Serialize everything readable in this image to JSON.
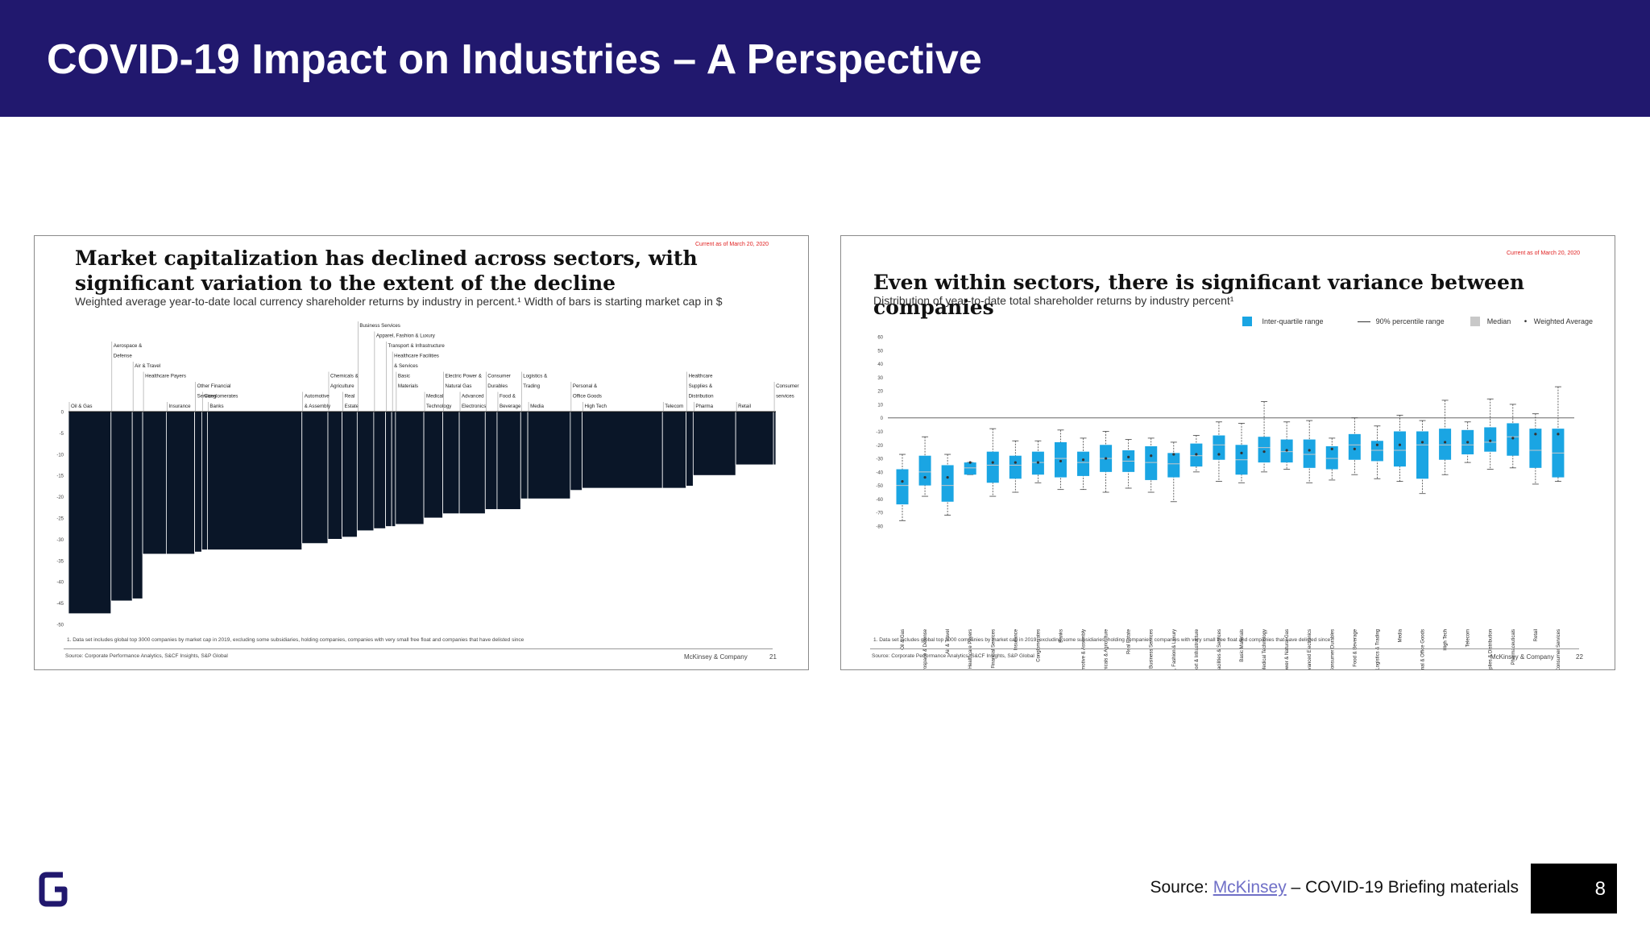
{
  "header": {
    "title": "COVID-19 Impact on Industries – A Perspective"
  },
  "left_panel": {
    "stamp": "Current as of March 20, 2020",
    "title": "Market capitalization has declined across sectors, with significant variation to the extent of the decline",
    "subtitle": "Weighted average year-to-date local currency shareholder returns by industry in percent.¹ Width of bars is starting market cap in $",
    "footnote": "1. Data set includes global top 3000 companies by market cap in 2019, excluding some subsidiaries, holding companies, companies with very small free float and companies that have delisted since",
    "source": "Source: Corporate Performance Analytics, S&CF Insights, S&P Global",
    "brand": "McKinsey & Company",
    "page": "21"
  },
  "right_panel": {
    "stamp": "Current as of March 20, 2020",
    "title": "Even within sectors, there is significant variance between companies",
    "subtitle": "Distribution of year-to-date total shareholder returns by industry percent¹",
    "legend": [
      "Inter-quartile range",
      "90% percentile range",
      "Median",
      "Weighted Average"
    ],
    "footnote": "1. Data set includes global top 3000 companies by market cap in 2019, excluding some subsidiaries, holding companies, companies with very small free float and companies that have delisted since",
    "source": "Source: Corporate Performance Analytics, S&CF Insights, S&P Global",
    "brand": "McKinsey & Company",
    "page": "22"
  },
  "chart_data": [
    {
      "type": "bar",
      "title": "Market capitalization has declined across sectors, with significant variation to the extent of the decline",
      "ylim": [
        -50,
        0
      ],
      "yticks": [
        0,
        -5,
        -10,
        -15,
        -20,
        -25,
        -30,
        -35,
        -40,
        -45,
        -50
      ],
      "bar_color": "#0a1628",
      "bars": [
        {
          "label": "Oil & Gas",
          "value": -47.5,
          "width": 9
        },
        {
          "label": "Aerospace & Defense",
          "value": -44.5,
          "width": 4.5
        },
        {
          "label": "Air & Travel",
          "value": -44,
          "width": 2.2
        },
        {
          "label": "Healthcare Payers",
          "value": -33.5,
          "width": 5
        },
        {
          "label": "Insurance",
          "value": -33.5,
          "width": 6
        },
        {
          "label": "Other Financial Services",
          "value": -33,
          "width": 1.5
        },
        {
          "label": "Conglomerates",
          "value": -32.5,
          "width": 1.2
        },
        {
          "label": "Banks",
          "value": -32.5,
          "width": 20
        },
        {
          "label": "Automotive & Assembly",
          "value": -31,
          "width": 5.5
        },
        {
          "label": "Chemicals & Agriculture",
          "value": -30,
          "width": 3
        },
        {
          "label": "Real Estate",
          "value": -29.5,
          "width": 3.2
        },
        {
          "label": "Business Services",
          "value": -28,
          "width": 3.5
        },
        {
          "label": "Apparel, Fashion & Luxury",
          "value": -27.5,
          "width": 2.5
        },
        {
          "label": "Transport & Infrastructure",
          "value": -27,
          "width": 1.3
        },
        {
          "label": "Healthcare Facilities & Services",
          "value": -27,
          "width": 0.8
        },
        {
          "label": "Basic Materials",
          "value": -26.5,
          "width": 6
        },
        {
          "label": "Medical Technology",
          "value": -25,
          "width": 4
        },
        {
          "label": "Electric Power & Natural Gas",
          "value": -24,
          "width": 3.5
        },
        {
          "label": "Advanced Electronics",
          "value": -24,
          "width": 5.5
        },
        {
          "label": "Consumer Durables",
          "value": -23,
          "width": 2.5
        },
        {
          "label": "Food & Beverage",
          "value": -23,
          "width": 5
        },
        {
          "label": "Logistics & Trading",
          "value": -20.5,
          "width": 1.5
        },
        {
          "label": "Media",
          "value": -20.5,
          "width": 9
        },
        {
          "label": "Personal & Office Goods",
          "value": -18.5,
          "width": 2.5
        },
        {
          "label": "High Tech",
          "value": -18,
          "width": 17
        },
        {
          "label": "Telecom",
          "value": -18,
          "width": 5
        },
        {
          "label": "Healthcare Supplies & Distribution",
          "value": -17.5,
          "width": 1.5
        },
        {
          "label": "Pharma",
          "value": -15,
          "width": 9
        },
        {
          "label": "Retail",
          "value": -12.5,
          "width": 8
        },
        {
          "label": "Consumer services",
          "value": -12.5,
          "width": 0.5
        }
      ],
      "bar_labels": [
        {
          "text": "Oil & Gas",
          "bar": 0,
          "row": 0
        },
        {
          "text": "Aerospace &",
          "bar": 1,
          "row": 6
        },
        {
          "text": "Defense",
          "bar": 1,
          "row": 5
        },
        {
          "text": "Air & Travel",
          "bar": 2,
          "row": 4
        },
        {
          "text": "Healthcare Payers",
          "bar": 3,
          "row": 3
        },
        {
          "text": "Other Financial",
          "bar": 5,
          "row": 2
        },
        {
          "text": "Services",
          "bar": 5,
          "row": 1
        },
        {
          "text": "Insurance",
          "bar": 4,
          "row": 0
        },
        {
          "text": "Conglomerates",
          "bar": 6,
          "row": 1
        },
        {
          "text": "Banks",
          "bar": 7,
          "row": 0
        },
        {
          "text": "Chemicals &",
          "bar": 9,
          "row": 3
        },
        {
          "text": "Agriculture",
          "bar": 9,
          "row": 2
        },
        {
          "text": "Automotive",
          "bar": 8,
          "row": 1
        },
        {
          "text": "& Assembly",
          "bar": 8,
          "row": 0
        },
        {
          "text": "Real",
          "bar": 10,
          "row": 1
        },
        {
          "text": "Estate",
          "bar": 10,
          "row": 0
        },
        {
          "text": "Business Services",
          "bar": 11,
          "row": 8
        },
        {
          "text": "Apparel, Fashion & Luxury",
          "bar": 12,
          "row": 7
        },
        {
          "text": "Transport & Infrastructure",
          "bar": 13,
          "row": 6
        },
        {
          "text": "Healthcare Facilities",
          "bar": 14,
          "row": 5
        },
        {
          "text": "& Services",
          "bar": 14,
          "row": 4
        },
        {
          "text": "Basic",
          "bar": 15,
          "row": 3
        },
        {
          "text": "Materials",
          "bar": 15,
          "row": 2
        },
        {
          "text": "Medical",
          "bar": 16,
          "row": 1
        },
        {
          "text": "Technology",
          "bar": 16,
          "row": 0
        },
        {
          "text": "Electric Power &",
          "bar": 17,
          "row": 3
        },
        {
          "text": "Natural Gas",
          "bar": 17,
          "row": 2
        },
        {
          "text": "Advanced",
          "bar": 18,
          "row": 1
        },
        {
          "text": "Electronics",
          "bar": 18,
          "row": 0
        },
        {
          "text": "Consumer",
          "bar": 19,
          "row": 3
        },
        {
          "text": "Durables",
          "bar": 19,
          "row": 2
        },
        {
          "text": "Food &",
          "bar": 20,
          "row": 1
        },
        {
          "text": "Beverage",
          "bar": 20,
          "row": 0
        },
        {
          "text": "Logistics &",
          "bar": 21,
          "row": 3
        },
        {
          "text": "Trading",
          "bar": 21,
          "row": 2
        },
        {
          "text": "Media",
          "bar": 22,
          "row": 0
        },
        {
          "text": "Personal &",
          "bar": 23,
          "row": 2
        },
        {
          "text": "Office Goods",
          "bar": 23,
          "row": 1
        },
        {
          "text": "High Tech",
          "bar": 24,
          "row": 0
        },
        {
          "text": "Telecom",
          "bar": 25,
          "row": 0
        },
        {
          "text": "Healthcare",
          "bar": 26,
          "row": 3
        },
        {
          "text": "Supplies &",
          "bar": 26,
          "row": 2
        },
        {
          "text": "Distribution",
          "bar": 26,
          "row": 1
        },
        {
          "text": "Pharma",
          "bar": 27,
          "row": 0
        },
        {
          "text": "Consumer",
          "bar": 29,
          "row": 2
        },
        {
          "text": "services",
          "bar": 29,
          "row": 1
        },
        {
          "text": "Retail",
          "bar": 28,
          "row": 0
        }
      ]
    },
    {
      "type": "box",
      "title": "Even within sectors, there is significant variance between companies",
      "ylim": [
        -80,
        60
      ],
      "yticks": [
        60,
        50,
        40,
        30,
        20,
        10,
        0,
        -10,
        -20,
        -30,
        -40,
        -50,
        -60,
        -70,
        -80
      ],
      "box_color": "#1aa5e3",
      "series": [
        {
          "label": "Oil & Gas",
          "p5": -76,
          "q1": -64,
          "median": -50,
          "q3": -38,
          "p95": -27,
          "wavg": -47
        },
        {
          "label": "Aerospace & Defense",
          "p5": -58,
          "q1": -50,
          "median": -40,
          "q3": -28,
          "p95": -14,
          "wavg": -44
        },
        {
          "label": "Air & Travel",
          "p5": -72,
          "q1": -62,
          "median": -50,
          "q3": -35,
          "p95": -27,
          "wavg": -44
        },
        {
          "label": "Healthcare Payers",
          "p5": -42,
          "q1": -42,
          "median": -37,
          "q3": -33,
          "p95": -33,
          "wavg": -33
        },
        {
          "label": "Other Financial Services",
          "p5": -58,
          "q1": -48,
          "median": -35,
          "q3": -25,
          "p95": -8,
          "wavg": -33
        },
        {
          "label": "Insurance",
          "p5": -55,
          "q1": -45,
          "median": -35,
          "q3": -28,
          "p95": -17,
          "wavg": -33
        },
        {
          "label": "Conglomerates",
          "p5": -48,
          "q1": -42,
          "median": -33,
          "q3": -25,
          "p95": -17,
          "wavg": -33
        },
        {
          "label": "Banks",
          "p5": -53,
          "q1": -44,
          "median": -30,
          "q3": -18,
          "p95": -9,
          "wavg": -32
        },
        {
          "label": "Automotive & Assembly",
          "p5": -53,
          "q1": -43,
          "median": -33,
          "q3": -25,
          "p95": -15,
          "wavg": -31
        },
        {
          "label": "Chemicals & Agriculture",
          "p5": -55,
          "q1": -40,
          "median": -30,
          "q3": -20,
          "p95": -10,
          "wavg": -30
        },
        {
          "label": "Real Estate",
          "p5": -52,
          "q1": -40,
          "median": -32,
          "q3": -24,
          "p95": -16,
          "wavg": -29
        },
        {
          "label": "Business Services",
          "p5": -55,
          "q1": -46,
          "median": -33,
          "q3": -21,
          "p95": -15,
          "wavg": -28
        },
        {
          "label": "Apparel, Fashion & Luxury",
          "p5": -62,
          "q1": -44,
          "median": -34,
          "q3": -26,
          "p95": -18,
          "wavg": -27
        },
        {
          "label": "Transport & Infrastructure",
          "p5": -40,
          "q1": -36,
          "median": -28,
          "q3": -19,
          "p95": -13,
          "wavg": -27
        },
        {
          "label": "Healthcare Facilities & Services",
          "p5": -47,
          "q1": -31,
          "median": -20,
          "q3": -13,
          "p95": -3,
          "wavg": -27
        },
        {
          "label": "Basic Materials",
          "p5": -48,
          "q1": -42,
          "median": -31,
          "q3": -20,
          "p95": -4,
          "wavg": -26
        },
        {
          "label": "Medical Technology",
          "p5": -40,
          "q1": -33,
          "median": -22,
          "q3": -14,
          "p95": 12,
          "wavg": -25
        },
        {
          "label": "Electric Power & Natural Gas",
          "p5": -38,
          "q1": -33,
          "median": -25,
          "q3": -16,
          "p95": -3,
          "wavg": -24
        },
        {
          "label": "Advanced Electronics",
          "p5": -48,
          "q1": -37,
          "median": -27,
          "q3": -16,
          "p95": -2,
          "wavg": -24
        },
        {
          "label": "Consumer Durables",
          "p5": -46,
          "q1": -38,
          "median": -30,
          "q3": -21,
          "p95": -15,
          "wavg": -23
        },
        {
          "label": "Food & Beverage",
          "p5": -42,
          "q1": -31,
          "median": -20,
          "q3": -12,
          "p95": 0,
          "wavg": -23
        },
        {
          "label": "Logistics & Trading",
          "p5": -45,
          "q1": -32,
          "median": -24,
          "q3": -17,
          "p95": -6,
          "wavg": -20
        },
        {
          "label": "Media",
          "p5": -47,
          "q1": -36,
          "median": -24,
          "q3": -10,
          "p95": 2,
          "wavg": -20
        },
        {
          "label": "Personal & Office Goods",
          "p5": -56,
          "q1": -45,
          "median": -20,
          "q3": -10,
          "p95": -2,
          "wavg": -18
        },
        {
          "label": "High Tech",
          "p5": -42,
          "q1": -31,
          "median": -20,
          "q3": -8,
          "p95": 13,
          "wavg": -18
        },
        {
          "label": "Telecom",
          "p5": -33,
          "q1": -27,
          "median": -20,
          "q3": -9,
          "p95": -3,
          "wavg": -18
        },
        {
          "label": "Healthcare Supplies & Distribution",
          "p5": -38,
          "q1": -25,
          "median": -18,
          "q3": -7,
          "p95": 14,
          "wavg": -17
        },
        {
          "label": "Pharmaceuticals",
          "p5": -37,
          "q1": -28,
          "median": -14,
          "q3": -4,
          "p95": 10,
          "wavg": -15
        },
        {
          "label": "Retail",
          "p5": -49,
          "q1": -37,
          "median": -24,
          "q3": -8,
          "p95": 3,
          "wavg": -12
        },
        {
          "label": "Consumer Services",
          "p5": -47,
          "q1": -44,
          "median": -26,
          "q3": -8,
          "p95": 23,
          "wavg": -12
        }
      ]
    }
  ],
  "footer": {
    "source_prefix": "Source: ",
    "source_link": "McKinsey",
    "source_suffix": " – COVID-19 Briefing materials",
    "page_number": "8"
  },
  "colors": {
    "header_bg": "#21186e",
    "logo": "#21186e",
    "link": "#6f6fc7",
    "box": "#1aa5e3",
    "bar": "#0a1628"
  }
}
